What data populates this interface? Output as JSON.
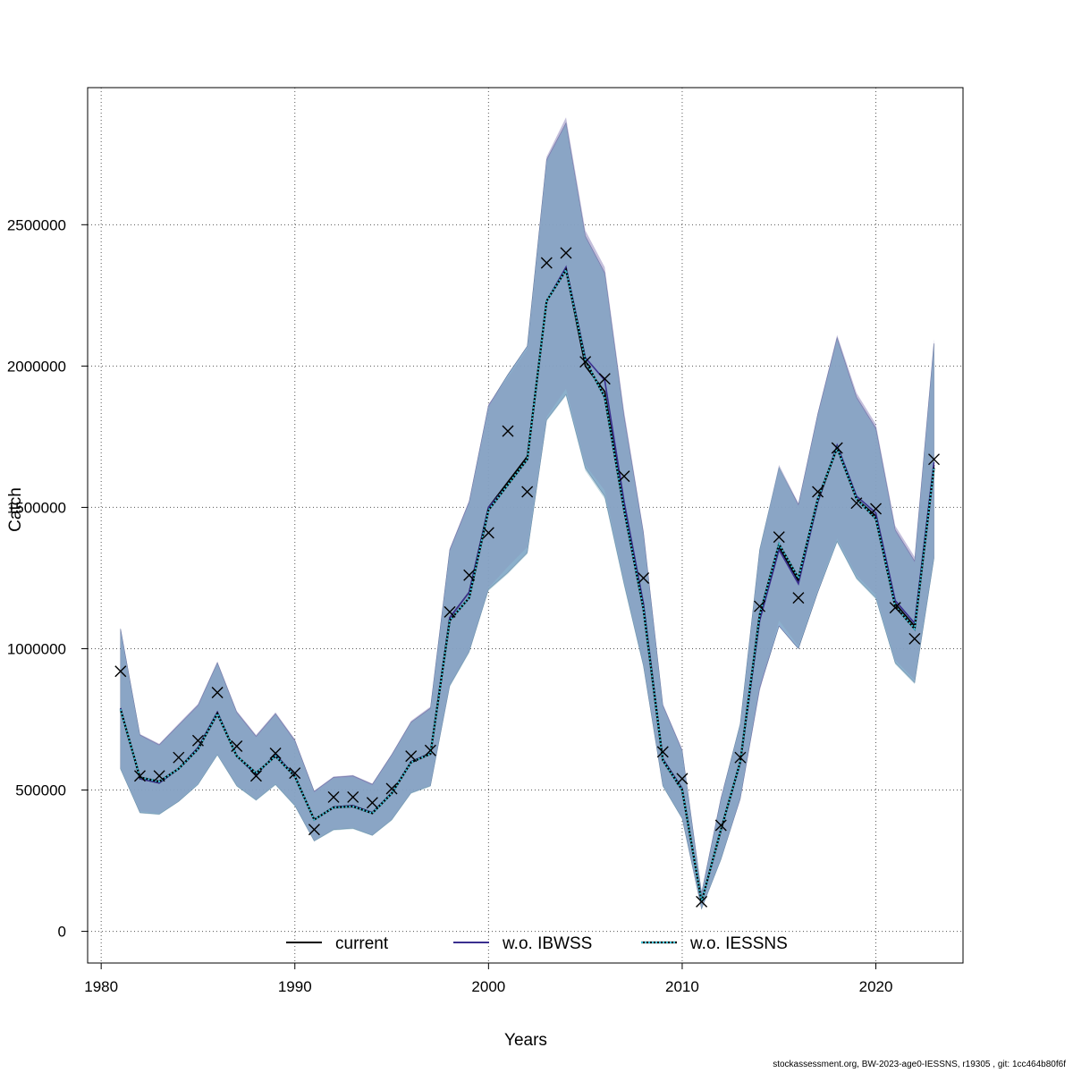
{
  "chart_data": {
    "type": "line",
    "title": "",
    "xlabel": "Years",
    "ylabel": "Catch",
    "xlim": [
      1979.3,
      2024.5
    ],
    "ylim": [
      -112000,
      2985000
    ],
    "xticks": [
      1980,
      1990,
      2000,
      2010,
      2020
    ],
    "yticks": [
      0,
      500000,
      1000000,
      1500000,
      2000000,
      2500000
    ],
    "grid": true,
    "legend_position": "bottom",
    "x": [
      1981,
      1982,
      1983,
      1984,
      1985,
      1986,
      1987,
      1988,
      1989,
      1990,
      1991,
      1992,
      1993,
      1994,
      1995,
      1996,
      1997,
      1998,
      1999,
      2000,
      2001,
      2002,
      2003,
      2004,
      2005,
      2006,
      2007,
      2008,
      2009,
      2010,
      2011,
      2012,
      2013,
      2014,
      2015,
      2016,
      2017,
      2018,
      2019,
      2020,
      2021,
      2022,
      2023
    ],
    "series": [
      {
        "name": "current",
        "color": "#000000",
        "dash": "solid",
        "values": [
          790000,
          540000,
          525000,
          575000,
          650000,
          775000,
          620000,
          555000,
          625000,
          550000,
          395000,
          440000,
          445000,
          420000,
          490000,
          600000,
          630000,
          1110000,
          1200000,
          1500000,
          1590000,
          1680000,
          2230000,
          2340000,
          2000000,
          1910000,
          1500000,
          1150000,
          610000,
          505000,
          105000,
          360000,
          600000,
          1110000,
          1360000,
          1240000,
          1520000,
          1710000,
          1530000,
          1470000,
          1160000,
          1080000,
          1650000
        ],
        "lower": [
          575000,
          420000,
          415000,
          460000,
          520000,
          625000,
          515000,
          465000,
          520000,
          445000,
          320000,
          360000,
          365000,
          340000,
          395000,
          490000,
          515000,
          870000,
          990000,
          1210000,
          1270000,
          1340000,
          1810000,
          1900000,
          1640000,
          1540000,
          1230000,
          940000,
          515000,
          400000,
          80000,
          255000,
          470000,
          860000,
          1080000,
          1000000,
          1200000,
          1380000,
          1250000,
          1180000,
          950000,
          880000,
          1320000
        ],
        "upper": [
          1070000,
          695000,
          660000,
          730000,
          800000,
          950000,
          775000,
          690000,
          770000,
          675000,
          495000,
          545000,
          550000,
          520000,
          625000,
          740000,
          790000,
          1350000,
          1520000,
          1860000,
          1970000,
          2070000,
          2730000,
          2860000,
          2460000,
          2330000,
          1820000,
          1410000,
          800000,
          640000,
          135000,
          470000,
          735000,
          1350000,
          1640000,
          1510000,
          1830000,
          2100000,
          1890000,
          1780000,
          1420000,
          1310000,
          2080000
        ]
      },
      {
        "name": "w.o. IBWSS",
        "color": "#3a2f8f",
        "dash": "solid",
        "values": [
          790000,
          540000,
          525000,
          575000,
          650000,
          775000,
          620000,
          555000,
          625000,
          550000,
          395000,
          440000,
          445000,
          420000,
          490000,
          600000,
          630000,
          1110000,
          1200000,
          1500000,
          1580000,
          1670000,
          2230000,
          2350000,
          2030000,
          1950000,
          1520000,
          1160000,
          610000,
          505000,
          105000,
          360000,
          595000,
          1100000,
          1350000,
          1230000,
          1520000,
          1720000,
          1540000,
          1480000,
          1170000,
          1090000,
          1660000
        ],
        "lower": [
          580000,
          425000,
          418000,
          462000,
          525000,
          628000,
          518000,
          468000,
          523000,
          448000,
          322000,
          362000,
          367000,
          342000,
          397000,
          492000,
          517000,
          872000,
          992000,
          1215000,
          1290000,
          1360000,
          1820000,
          1920000,
          1650000,
          1560000,
          1240000,
          945000,
          518000,
          403000,
          82000,
          258000,
          465000,
          850000,
          1100000,
          1010000,
          1210000,
          1390000,
          1260000,
          1190000,
          960000,
          890000,
          1330000
        ],
        "upper": [
          1075000,
          698000,
          664000,
          735000,
          805000,
          955000,
          780000,
          695000,
          775000,
          680000,
          498000,
          548000,
          553000,
          523000,
          628000,
          745000,
          795000,
          1355000,
          1525000,
          1865000,
          1960000,
          2060000,
          2740000,
          2880000,
          2480000,
          2350000,
          1840000,
          1420000,
          805000,
          645000,
          138000,
          475000,
          730000,
          1345000,
          1650000,
          1515000,
          1835000,
          2110000,
          1905000,
          1795000,
          1435000,
          1325000,
          2095000
        ]
      },
      {
        "name": "w.o. IESSNS",
        "color": "#40c4d8",
        "dash": "dotted",
        "values": [
          785000,
          545000,
          530000,
          575000,
          645000,
          770000,
          620000,
          560000,
          620000,
          548000,
          395000,
          438000,
          442000,
          418000,
          488000,
          598000,
          628000,
          1100000,
          1180000,
          1490000,
          1580000,
          1670000,
          2230000,
          2340000,
          2020000,
          1890000,
          1490000,
          1140000,
          605000,
          500000,
          105000,
          360000,
          600000,
          1120000,
          1370000,
          1250000,
          1530000,
          1710000,
          1530000,
          1460000,
          1150000,
          1070000,
          1640000
        ],
        "lower": [
          572000,
          418000,
          412000,
          458000,
          518000,
          622000,
          512000,
          462000,
          517000,
          442000,
          318000,
          357000,
          362000,
          338000,
          392000,
          487000,
          512000,
          865000,
          985000,
          1205000,
          1265000,
          1335000,
          1805000,
          1895000,
          1630000,
          1530000,
          1220000,
          935000,
          512000,
          397000,
          78000,
          252000,
          472000,
          868000,
          1090000,
          1005000,
          1205000,
          1375000,
          1245000,
          1175000,
          945000,
          875000,
          1315000
        ],
        "upper": [
          1065000,
          692000,
          657000,
          728000,
          797000,
          948000,
          772000,
          687000,
          767000,
          672000,
          492000,
          542000,
          547000,
          517000,
          622000,
          738000,
          787000,
          1345000,
          1515000,
          1855000,
          1965000,
          2065000,
          2725000,
          2855000,
          2455000,
          2325000,
          1815000,
          1405000,
          797000,
          637000,
          133000,
          467000,
          738000,
          1355000,
          1645000,
          1505000,
          1825000,
          2095000,
          1885000,
          1775000,
          1415000,
          1305000,
          2075000
        ]
      }
    ],
    "observed": {
      "marker": "x",
      "values": [
        920000,
        550000,
        550000,
        615000,
        675000,
        845000,
        655000,
        550000,
        630000,
        560000,
        360000,
        475000,
        475000,
        455000,
        505000,
        620000,
        640000,
        1130000,
        1260000,
        1410000,
        1770000,
        1555000,
        2365000,
        2400000,
        2015000,
        1955000,
        1610000,
        1250000,
        635000,
        540000,
        105000,
        375000,
        615000,
        1150000,
        1395000,
        1180000,
        1555000,
        1710000,
        1515000,
        1495000,
        1145000,
        1035000,
        1670000
      ]
    },
    "band_colors": [
      "#7f9fcc",
      "#8a7fb8",
      "#86b4c4"
    ]
  },
  "footer_text": "stockassessment.org, BW-2023-age0-IESSNS, r19305 , git: 1cc464b80f6f"
}
